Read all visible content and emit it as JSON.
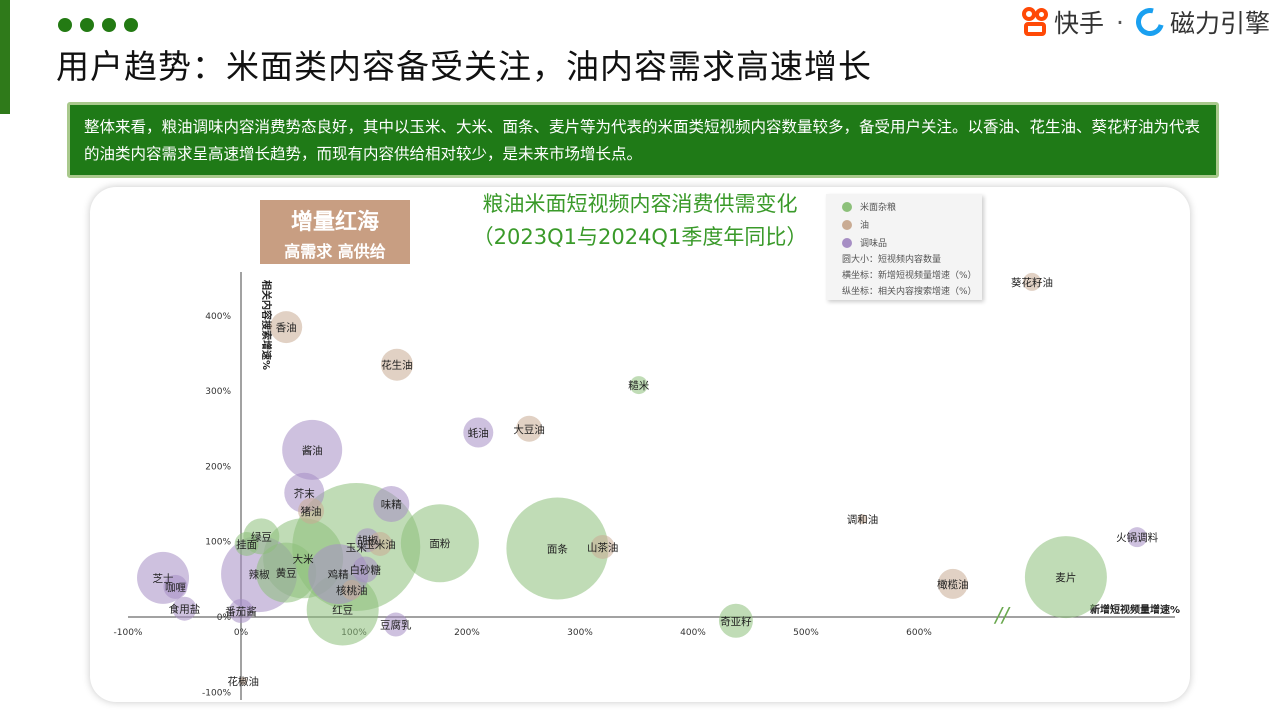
{
  "header": {
    "title": "用户趋势：米面类内容备受关注，油内容需求高速增长",
    "logo_kuaishou": "快手",
    "logo_sep": "·",
    "logo_cili": "磁力引擎"
  },
  "summary": "整体来看，粮油调味内容消费势态良好，其中以玉米、大米、面条、麦片等为代表的米面类短视频内容数量较多，备受用户关注。以香油、花生油、葵花籽油为代表的油类内容需求呈高速增长趋势，而现有内容供给相对较少，是未来市场增长点。",
  "badge": {
    "line1": "增量红海",
    "line2": "高需求 高供给"
  },
  "chart_title": {
    "line1": "粮油米面短视频内容消费供需变化",
    "line2": "（2023Q1与2024Q1季度年同比）"
  },
  "legend": {
    "categories": [
      {
        "label": "米面杂粮",
        "color": "#8cc07a"
      },
      {
        "label": "油",
        "color": "#c9ab93"
      },
      {
        "label": "调味品",
        "color": "#a68ec4"
      }
    ],
    "notes": [
      "圆大小：短视频内容数量",
      "横坐标：新增短视频量增速（%）",
      "纵坐标：相关内容搜索增速（%）"
    ]
  },
  "colors": {
    "grain": "#8cc07a",
    "oil": "#c9ab93",
    "spice": "#a68ec4"
  },
  "chart_data": {
    "type": "scatter",
    "xlabel": "新增短视频量增速%",
    "ylabel": "相关内容搜索增速%",
    "x_ticks": [
      "-100%",
      "0%",
      "100%",
      "200%",
      "300%",
      "400%",
      "500%",
      "600%"
    ],
    "y_ticks": [
      "-100%",
      "0%",
      "100%",
      "200%",
      "300%",
      "400%"
    ],
    "xlim": [
      -100,
      820
    ],
    "ylim": [
      -100,
      460
    ],
    "axis_break": "//",
    "points": [
      {
        "name": "香油",
        "x": 40,
        "y": 385,
        "size": 16,
        "cat": "oil"
      },
      {
        "name": "花生油",
        "x": 138,
        "y": 335,
        "size": 16,
        "cat": "oil"
      },
      {
        "name": "糙米",
        "x": 352,
        "y": 308,
        "size": 9,
        "cat": "grain"
      },
      {
        "name": "蚝油",
        "x": 210,
        "y": 245,
        "size": 15,
        "cat": "spice"
      },
      {
        "name": "大豆油",
        "x": 255,
        "y": 250,
        "size": 13,
        "cat": "oil"
      },
      {
        "name": "酱油",
        "x": 63,
        "y": 222,
        "size": 30,
        "cat": "spice"
      },
      {
        "name": "芥末",
        "x": 56,
        "y": 165,
        "size": 20,
        "cat": "spice"
      },
      {
        "name": "猪油",
        "x": 62,
        "y": 141,
        "size": 13,
        "cat": "oil"
      },
      {
        "name": "味精",
        "x": 133,
        "y": 150,
        "size": 18,
        "cat": "spice"
      },
      {
        "name": "玉米",
        "x": 102,
        "y": 93,
        "size": 64,
        "cat": "grain"
      },
      {
        "name": "绿豆",
        "x": 18,
        "y": 107,
        "size": 18,
        "cat": "grain"
      },
      {
        "name": "挂面",
        "x": 5,
        "y": 97,
        "size": 12,
        "cat": "grain"
      },
      {
        "name": "胡椒",
        "x": 112,
        "y": 102,
        "size": 12,
        "cat": "spice"
      },
      {
        "name": "玉米油",
        "x": 123,
        "y": 97,
        "size": 12,
        "cat": "oil"
      },
      {
        "name": "面粉",
        "x": 176,
        "y": 98,
        "size": 39,
        "cat": "grain"
      },
      {
        "name": "面条",
        "x": 280,
        "y": 91,
        "size": 51,
        "cat": "grain"
      },
      {
        "name": "山茶油",
        "x": 320,
        "y": 93,
        "size": 12,
        "cat": "oil"
      },
      {
        "name": "大米",
        "x": 55,
        "y": 78,
        "size": 40,
        "cat": "grain"
      },
      {
        "name": "辣椒",
        "x": 16,
        "y": 57,
        "size": 38,
        "cat": "spice"
      },
      {
        "name": "黄豆",
        "x": 40,
        "y": 59,
        "size": 30,
        "cat": "grain"
      },
      {
        "name": "鸡精",
        "x": 86,
        "y": 57,
        "size": 30,
        "cat": "spice"
      },
      {
        "name": "白砂糖",
        "x": 110,
        "y": 63,
        "size": 13,
        "cat": "spice"
      },
      {
        "name": "芝士",
        "x": -69,
        "y": 52,
        "size": 26,
        "cat": "spice"
      },
      {
        "name": "咖喱",
        "x": -58,
        "y": 40,
        "size": 12,
        "cat": "spice"
      },
      {
        "name": "番茄酱",
        "x": 0,
        "y": 8,
        "size": 12,
        "cat": "spice"
      },
      {
        "name": "核桃油",
        "x": 98,
        "y": 36,
        "size": 10,
        "cat": "oil"
      },
      {
        "name": "红豆",
        "x": 90,
        "y": 10,
        "size": 36,
        "cat": "grain"
      },
      {
        "name": "食用盐",
        "x": -50,
        "y": 11,
        "size": 12,
        "cat": "spice"
      },
      {
        "name": "豆腐乳",
        "x": 137,
        "y": -10,
        "size": 12,
        "cat": "spice"
      },
      {
        "name": "奇亚籽",
        "x": 438,
        "y": -5,
        "size": 17,
        "cat": "grain"
      },
      {
        "name": "调和油",
        "x": 550,
        "y": 130,
        "size": 5,
        "cat": "oil"
      },
      {
        "name": "橄榄油",
        "x": 630,
        "y": 44,
        "size": 15,
        "cat": "oil"
      },
      {
        "name": "葵花籽油",
        "x": 700,
        "y": 445,
        "size": 9,
        "cat": "oil"
      },
      {
        "name": "麦片",
        "x": 730,
        "y": 53,
        "size": 41,
        "cat": "grain"
      },
      {
        "name": "火锅调料",
        "x": 793,
        "y": 106,
        "size": 10,
        "cat": "spice"
      },
      {
        "name": "花椒油",
        "x": 2,
        "y": -85,
        "size": 4,
        "cat": "oil"
      }
    ]
  }
}
